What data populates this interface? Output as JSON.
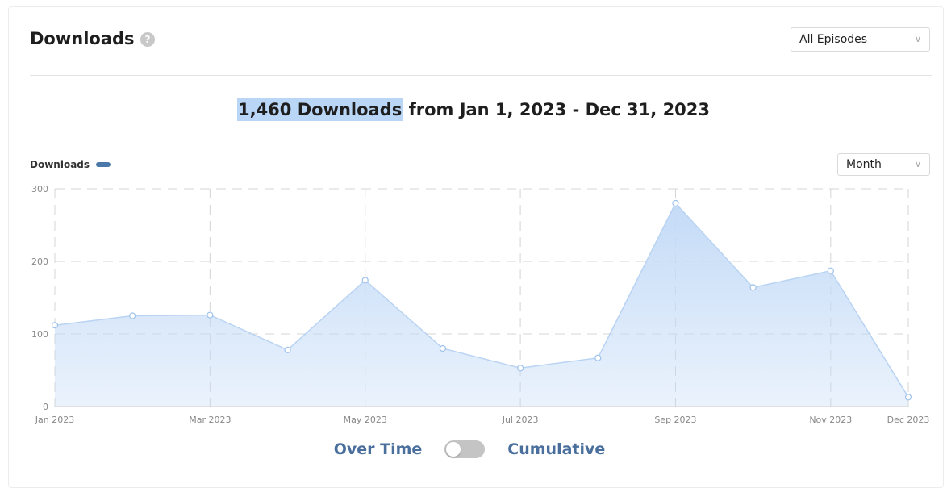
{
  "header": {
    "title": "Downloads",
    "help_icon": "help-icon",
    "episode_select_value": "All Episodes"
  },
  "summary": {
    "highlight": "1,460 Downloads",
    "rest": " from Jan 1, 2023 - Dec 31, 2023"
  },
  "legend_label": "Downloads",
  "interval_select_value": "Month",
  "toggle": {
    "left_label": "Over Time",
    "right_label": "Cumulative",
    "state": "off"
  },
  "colors": {
    "accent": "#4a78a8",
    "area_fill": "#c4dbf7",
    "highlight": "#b9d6f7"
  },
  "chart_data": {
    "type": "area",
    "x": [
      "Jan 2023",
      "Feb 2023",
      "Mar 2023",
      "Apr 2023",
      "May 2023",
      "Jun 2023",
      "Jul 2023",
      "Aug 2023",
      "Sep 2023",
      "Oct 2023",
      "Nov 2023",
      "Dec 2023"
    ],
    "x_tick_labels": [
      "Jan 2023",
      "",
      "Mar 2023",
      "",
      "May 2023",
      "",
      "Jul 2023",
      "",
      "Sep 2023",
      "",
      "Nov 2023",
      "Dec 2023"
    ],
    "series": [
      {
        "name": "Downloads",
        "values": [
          112,
          125,
          126,
          78,
          174,
          80,
          53,
          67,
          280,
          164,
          187,
          13
        ]
      }
    ],
    "y_ticks": [
      0,
      100,
      200,
      300
    ],
    "ylim": [
      0,
      300
    ],
    "grid": true,
    "legend_position": "top-left"
  }
}
